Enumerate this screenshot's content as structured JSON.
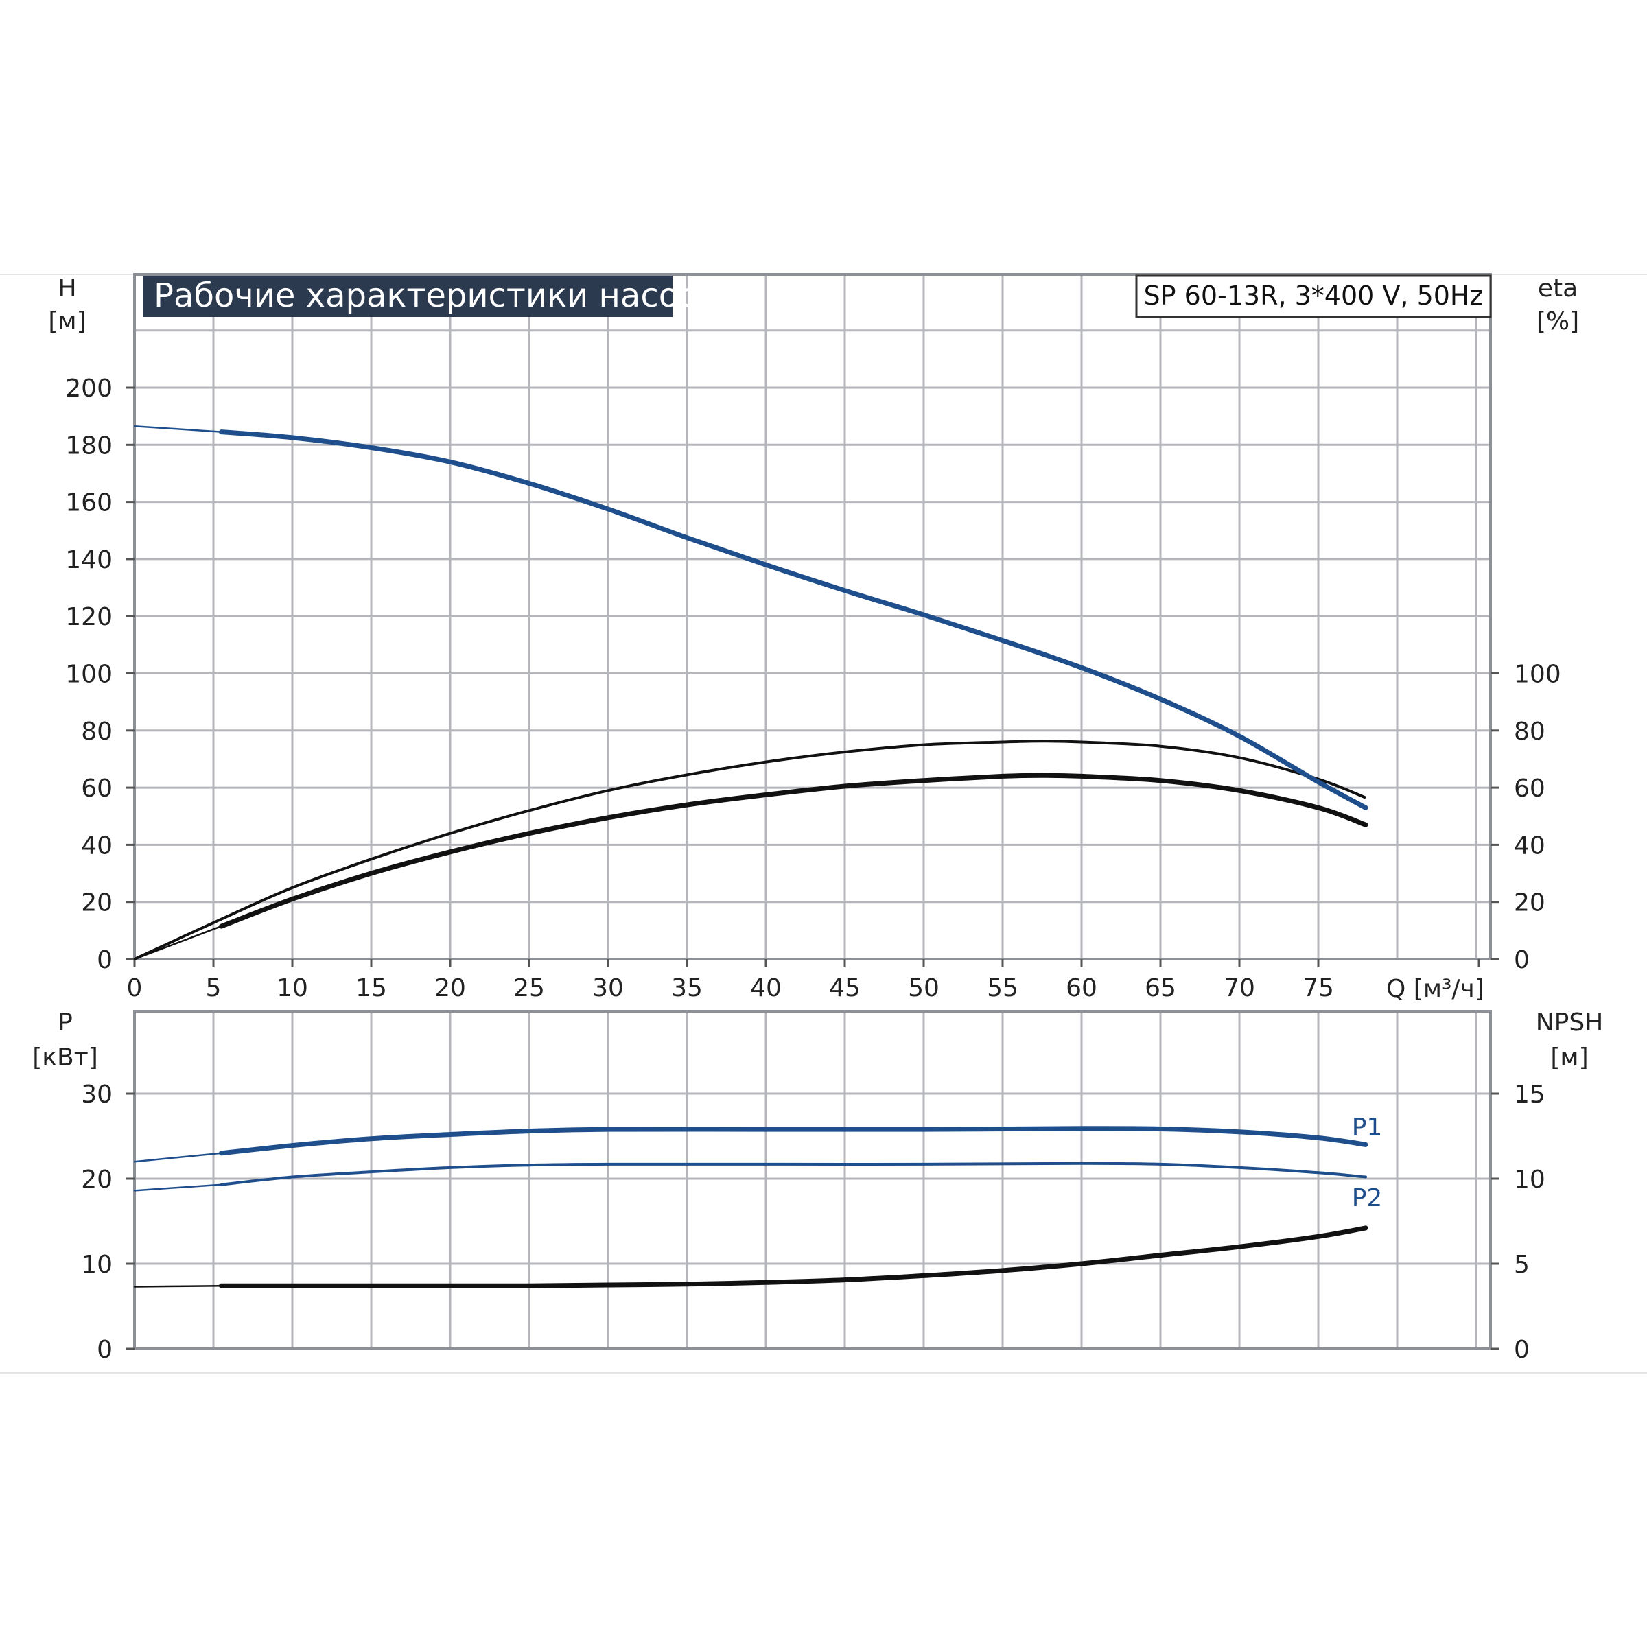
{
  "title": "Рабочие характеристики насоса",
  "model": "SP 60-13R, 3*400 V, 50Hz",
  "colors": {
    "blue": "#1f4e8c",
    "black": "#111111",
    "grid": "#b4b6bb",
    "title_bg": "#2c3a4f"
  },
  "chart_data": [
    {
      "type": "line",
      "name": "top-panel",
      "x_label": "Q [м³/ч]",
      "x_ticks": [
        "0",
        "5",
        "10",
        "15",
        "20",
        "25",
        "30",
        "35",
        "40",
        "45",
        "50",
        "55",
        "60",
        "65",
        "70",
        "75"
      ],
      "xlim": [
        0,
        86
      ],
      "y_left": {
        "label": "H",
        "unit": "[м]",
        "ticks": [
          "0",
          "20",
          "40",
          "60",
          "80",
          "100",
          "120",
          "140",
          "160",
          "180",
          "200"
        ],
        "range": [
          0,
          200
        ]
      },
      "y_right": {
        "label": "eta",
        "unit": "[%]",
        "ticks": [
          "0",
          "20",
          "40",
          "60",
          "80",
          "100"
        ],
        "range": [
          0,
          200
        ]
      },
      "grid": true,
      "series": [
        {
          "role": "head",
          "axis": "left",
          "color": "#1f4e8c",
          "points": [
            [
              0,
              186.5
            ],
            [
              5.5,
              184.5
            ],
            [
              10,
              182.5
            ],
            [
              15,
              179
            ],
            [
              20,
              174
            ],
            [
              25,
              166.5
            ],
            [
              30,
              157.5
            ],
            [
              35,
              147.5
            ],
            [
              40,
              138
            ],
            [
              45,
              129
            ],
            [
              50,
              120.5
            ],
            [
              55,
              111.5
            ],
            [
              60,
              102
            ],
            [
              65,
              91
            ],
            [
              70,
              78
            ],
            [
              75,
              62
            ],
            [
              78,
              53
            ]
          ]
        },
        {
          "role": "eta-upper",
          "axis": "right",
          "color": "#111111",
          "points": [
            [
              0,
              0
            ],
            [
              5.5,
              14
            ],
            [
              10,
              25
            ],
            [
              15,
              35
            ],
            [
              20,
              44
            ],
            [
              25,
              52
            ],
            [
              30,
              59
            ],
            [
              35,
              64.5
            ],
            [
              40,
              69
            ],
            [
              45,
              72.5
            ],
            [
              50,
              75
            ],
            [
              55,
              76
            ],
            [
              57.5,
              76.3
            ],
            [
              60,
              76
            ],
            [
              65,
              74.5
            ],
            [
              70,
              70.5
            ],
            [
              75,
              63
            ],
            [
              78,
              56.5
            ]
          ]
        },
        {
          "role": "eta-lower",
          "axis": "right",
          "color": "#111111",
          "points": [
            [
              0,
              0
            ],
            [
              5.5,
              11.5
            ],
            [
              10,
              21
            ],
            [
              15,
              30
            ],
            [
              20,
              37.5
            ],
            [
              25,
              44
            ],
            [
              30,
              49.5
            ],
            [
              35,
              54
            ],
            [
              40,
              57.5
            ],
            [
              45,
              60.5
            ],
            [
              50,
              62.5
            ],
            [
              55,
              64
            ],
            [
              57.5,
              64.3
            ],
            [
              60,
              64
            ],
            [
              65,
              62.5
            ],
            [
              70,
              59
            ],
            [
              75,
              53
            ],
            [
              78,
              47
            ]
          ]
        }
      ]
    },
    {
      "type": "line",
      "name": "bottom-panel",
      "xlim": [
        0,
        86
      ],
      "y_left": {
        "label": "P",
        "unit": "[кВт]",
        "ticks": [
          "0",
          "10",
          "20",
          "30"
        ],
        "range": [
          0,
          30
        ]
      },
      "y_right": {
        "label": "NPSH",
        "unit": "[м]",
        "ticks": [
          "0",
          "5",
          "10",
          "15"
        ],
        "range": [
          0,
          15
        ]
      },
      "grid": true,
      "series": [
        {
          "name": "P1",
          "axis": "left",
          "color": "#1f4e8c",
          "points": [
            [
              0,
              22
            ],
            [
              5.5,
              23
            ],
            [
              10,
              23.9
            ],
            [
              15,
              24.7
            ],
            [
              20,
              25.2
            ],
            [
              25,
              25.6
            ],
            [
              30,
              25.8
            ],
            [
              40,
              25.8
            ],
            [
              50,
              25.8
            ],
            [
              60,
              25.9
            ],
            [
              65,
              25.85
            ],
            [
              70,
              25.5
            ],
            [
              75,
              24.8
            ],
            [
              78,
              24
            ]
          ]
        },
        {
          "name": "P2",
          "axis": "left",
          "color": "#1f4e8c",
          "points": [
            [
              0,
              18.6
            ],
            [
              5.5,
              19.3
            ],
            [
              10,
              20.2
            ],
            [
              15,
              20.8
            ],
            [
              20,
              21.3
            ],
            [
              25,
              21.6
            ],
            [
              30,
              21.7
            ],
            [
              40,
              21.7
            ],
            [
              50,
              21.7
            ],
            [
              60,
              21.8
            ],
            [
              65,
              21.7
            ],
            [
              70,
              21.3
            ],
            [
              75,
              20.7
            ],
            [
              78,
              20.2
            ]
          ]
        },
        {
          "role": "npsh",
          "axis": "right",
          "color": "#111111",
          "points": [
            [
              0,
              3.65
            ],
            [
              5.5,
              3.7
            ],
            [
              10,
              3.7
            ],
            [
              20,
              3.7
            ],
            [
              25,
              3.7
            ],
            [
              30,
              3.75
            ],
            [
              35,
              3.8
            ],
            [
              40,
              3.9
            ],
            [
              45,
              4.05
            ],
            [
              50,
              4.3
            ],
            [
              55,
              4.6
            ],
            [
              60,
              5.0
            ],
            [
              65,
              5.5
            ],
            [
              70,
              6.0
            ],
            [
              75,
              6.6
            ],
            [
              78,
              7.1
            ]
          ]
        }
      ]
    }
  ]
}
